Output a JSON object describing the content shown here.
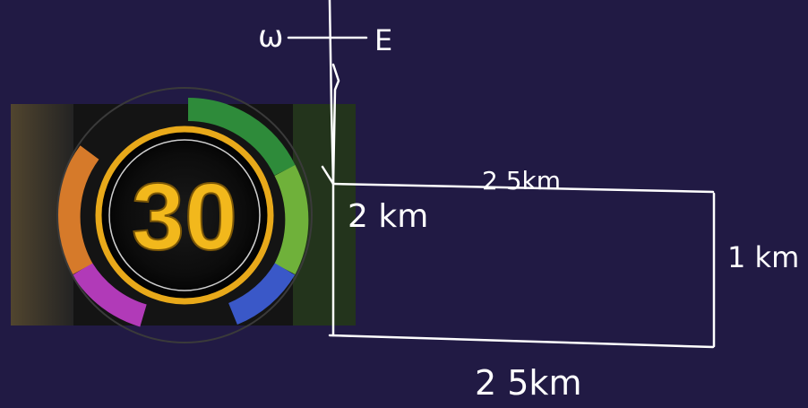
{
  "canvas": {
    "background": "#211a44",
    "ink_color": "#ffffff"
  },
  "compass": {
    "west_label": "ω",
    "east_label": "E"
  },
  "timer_image": {
    "number": "30",
    "number_color": "#f2b81c",
    "ring_colors": [
      "#2e8b3a",
      "#6fb13a",
      "#3a58c8",
      "#b13ab8",
      "#d67a2a"
    ]
  },
  "path_labels": {
    "top": "2 5km",
    "left": "2 km",
    "right": "1 km",
    "bottom": "2 5km"
  }
}
